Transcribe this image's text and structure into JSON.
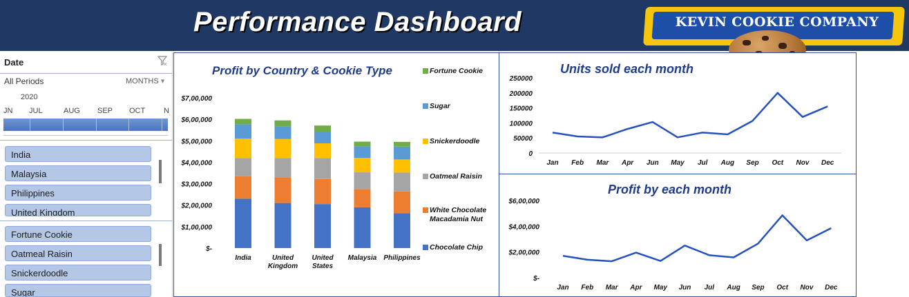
{
  "header": {
    "title": "Performance Dashboard",
    "logo_text": "KEVIN COOKIE COMPANY"
  },
  "date_slicer": {
    "title": "Date",
    "range_label": "All Periods",
    "level_label": "MONTHS",
    "year": "2020",
    "months": [
      "JN",
      "JUL",
      "AUG",
      "SEP",
      "OCT",
      "N"
    ]
  },
  "country_slicer": {
    "items": [
      "India",
      "Malaysia",
      "Philippines",
      "United Kingdom"
    ]
  },
  "cookie_slicer": {
    "items": [
      "Fortune Cookie",
      "Oatmeal Raisin",
      "Snickerdoodle",
      "Sugar"
    ]
  },
  "colors": {
    "header_bg": "#1f3864",
    "title_blue": "#1f3c8c",
    "line_blue": "#2450c0",
    "slicer_btn": "#b4c7e7"
  },
  "chart_data": [
    {
      "type": "bar",
      "stacked": true,
      "title": "Profit by Country & Cookie Type",
      "categories": [
        "India",
        "United Kingdom",
        "United States",
        "Malaysia",
        "Philippines"
      ],
      "category_lines": [
        [
          "India"
        ],
        [
          "United",
          "Kingdom"
        ],
        [
          "United",
          "States"
        ],
        [
          "Malaysia"
        ],
        [
          "Philippines"
        ]
      ],
      "y_ticks": [
        "$-",
        "$1,00,000",
        "$2,00,000",
        "$3,00,000",
        "$4,00,000",
        "$5,00,000",
        "$6,00,000",
        "$7,00,000"
      ],
      "ylim": [
        0,
        700000
      ],
      "legend_position": "right",
      "series": [
        {
          "name": "Chocolate Chip",
          "color": "#4472c4",
          "values": [
            230000,
            210000,
            205000,
            190000,
            162000
          ]
        },
        {
          "name": "White Chocolate Macadamia Nut",
          "color": "#ed7d31",
          "values": [
            105000,
            120000,
            117000,
            85000,
            102000
          ]
        },
        {
          "name": "Oatmeal Raisin",
          "color": "#a5a5a5",
          "values": [
            85000,
            90000,
            98000,
            78000,
            88000
          ]
        },
        {
          "name": "Snickerdoodle",
          "color": "#ffc000",
          "values": [
            90000,
            88000,
            68000,
            67000,
            61000
          ]
        },
        {
          "name": "Sugar",
          "color": "#5b9bd5",
          "values": [
            67000,
            60000,
            53000,
            54000,
            60000
          ]
        },
        {
          "name": "Fortune Cookie",
          "color": "#70ad47",
          "values": [
            25000,
            27000,
            30000,
            22000,
            22000
          ]
        }
      ]
    },
    {
      "type": "line",
      "title": "Units sold each month",
      "categories": [
        "Jan",
        "Feb",
        "Mar",
        "Apr",
        "Jun",
        "May",
        "Jul",
        "Aug",
        "Sep",
        "Oct",
        "Nov",
        "Dec"
      ],
      "y_ticks": [
        "0",
        "50000",
        "100000",
        "150000",
        "200000",
        "250000"
      ],
      "ylim": [
        0,
        250000
      ],
      "values": [
        68000,
        55000,
        52000,
        80000,
        103000,
        52000,
        68000,
        62000,
        107000,
        200000,
        120000,
        155000
      ]
    },
    {
      "type": "line",
      "title": "Profit by each month",
      "categories": [
        "Jan",
        "Feb",
        "Mar",
        "Apr",
        "May",
        "Jun",
        "Jul",
        "Aug",
        "Sep",
        "Oct",
        "Nov",
        "Dec"
      ],
      "y_ticks": [
        "$-",
        "$2,00,000",
        "$4,00,000",
        "$6,00,000"
      ],
      "ylim": [
        0,
        600000
      ],
      "values": [
        170000,
        140000,
        128000,
        195000,
        130000,
        250000,
        175000,
        158000,
        265000,
        485000,
        290000,
        385000
      ]
    }
  ]
}
